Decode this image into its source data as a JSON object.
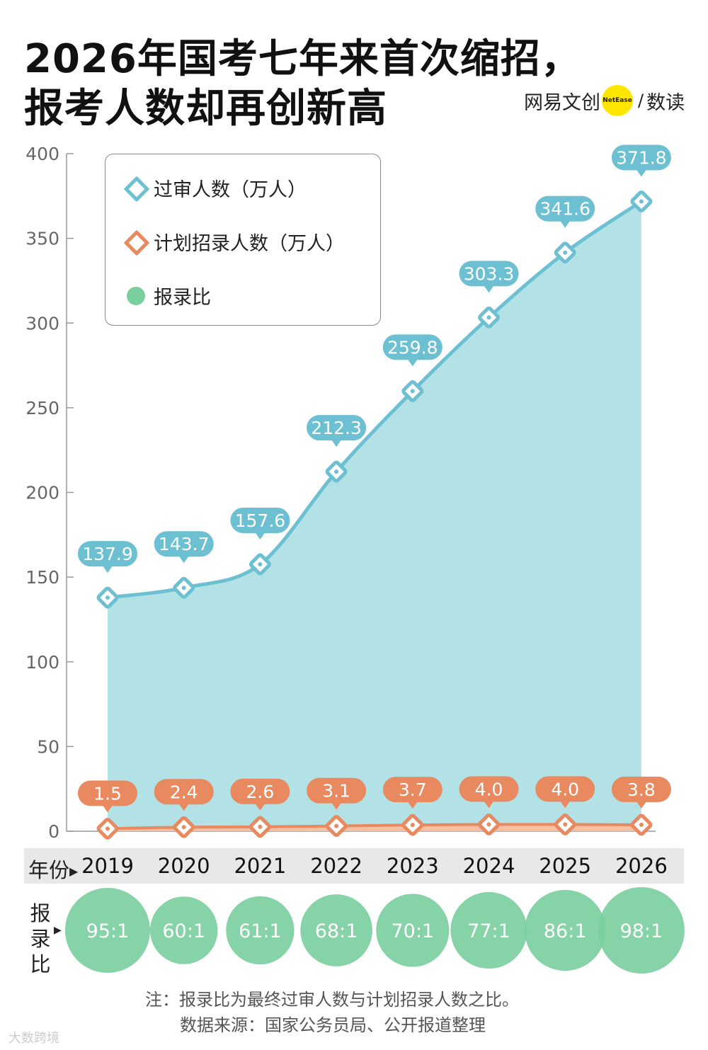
{
  "title": {
    "line1": "2026年国考七年来首次缩招，",
    "line2": "报考人数却再创新高"
  },
  "brand": {
    "name": "网易文创",
    "badge": "NetEase",
    "slash": "/",
    "sub": "数读"
  },
  "legend": {
    "series1": "过审人数（万人）",
    "series2": "计划招录人数（万人）",
    "series3": "报录比"
  },
  "axis": {
    "year_header": "年份",
    "ratio_header": [
      "报",
      "录",
      "比"
    ]
  },
  "chart_data": {
    "type": "area",
    "title": "2026年国考七年来首次缩招，报考人数却再创新高",
    "xlabel": "年份",
    "ylabel": "",
    "ylim": [
      0,
      400
    ],
    "yticks": [
      0,
      50,
      100,
      150,
      200,
      250,
      300,
      350,
      400
    ],
    "categories": [
      "2019",
      "2020",
      "2021",
      "2022",
      "2023",
      "2024",
      "2025",
      "2026"
    ],
    "series": [
      {
        "name": "过审人数（万人）",
        "color": "#6cc0d2",
        "fill": "#b2e1e6",
        "values": [
          137.9,
          143.7,
          157.6,
          212.3,
          259.8,
          303.3,
          341.6,
          371.8
        ]
      },
      {
        "name": "计划招录人数（万人）",
        "color": "#e9895f",
        "fill": "#f4bfa3",
        "values": [
          1.5,
          2.4,
          2.6,
          3.1,
          3.7,
          4.0,
          4.0,
          3.8
        ]
      }
    ],
    "ratio": {
      "name": "报录比",
      "color": "#7bcf9e",
      "values": [
        95,
        60,
        61,
        68,
        70,
        77,
        86,
        98
      ],
      "labels": [
        "95:1",
        "60:1",
        "61:1",
        "68:1",
        "70:1",
        "77:1",
        "86:1",
        "98:1"
      ]
    },
    "legend_position": "top-left",
    "grid": false
  },
  "notes": {
    "line1": "注：报录比为最终过审人数与计划招录人数之比。",
    "line2": "数据来源：国家公务员局、公开报道整理"
  },
  "watermark": "大数跨境"
}
